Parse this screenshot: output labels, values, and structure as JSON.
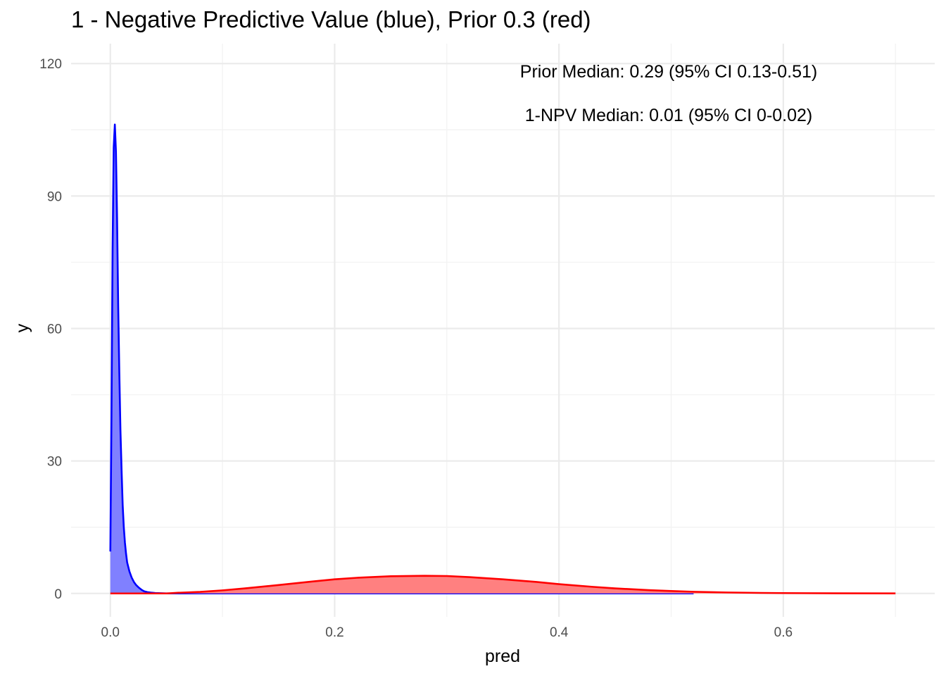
{
  "chart_data": {
    "type": "area",
    "title": "1 - Negative Predictive Value (blue), Prior 0.3 (red)",
    "xlabel": "pred",
    "ylabel": "y",
    "xlim": [
      -0.035,
      0.735
    ],
    "ylim": [
      -5.3,
      124.5
    ],
    "x_ticks": [
      0.0,
      0.2,
      0.4,
      0.6
    ],
    "x_tick_labels": [
      "0.0",
      "0.2",
      "0.4",
      "0.6"
    ],
    "x_minor_ticks": [
      0.1,
      0.3,
      0.5,
      0.7
    ],
    "y_ticks": [
      0,
      30,
      60,
      90,
      120
    ],
    "y_tick_labels": [
      "0",
      "30",
      "60",
      "90",
      "120"
    ],
    "y_minor_ticks": [
      15,
      45,
      75,
      105
    ],
    "grid": true,
    "legend": "none",
    "annotations": [
      "Prior Median: 0.29 (95% CI 0.13-0.51)",
      "1-NPV Median: 0.01 (95% CI 0-0.02)"
    ],
    "series": [
      {
        "color": "#0000ff",
        "fill": "#8080ff",
        "x": [
          0.0,
          0.001,
          0.002,
          0.003,
          0.004,
          0.005,
          0.006,
          0.007,
          0.008,
          0.009,
          0.01,
          0.011,
          0.012,
          0.013,
          0.014,
          0.015,
          0.017,
          0.019,
          0.021,
          0.023,
          0.025,
          0.028,
          0.03,
          0.033,
          0.036,
          0.04,
          0.045,
          0.05,
          0.06,
          0.1,
          0.2,
          0.3,
          0.4,
          0.52
        ],
        "y": [
          9.5,
          40,
          78,
          101,
          106.2,
          100,
          85,
          65,
          50,
          37,
          28,
          20,
          15,
          11.5,
          9,
          7,
          5,
          3.6,
          2.6,
          1.9,
          1.4,
          0.8,
          0.5,
          0.3,
          0.2,
          0.1,
          0.05,
          0.02,
          0,
          0,
          0,
          0,
          0,
          0
        ]
      },
      {
        "color": "#ff0000",
        "fill": "#ff8080",
        "x": [
          0.0,
          0.05,
          0.06,
          0.08,
          0.1,
          0.12,
          0.15,
          0.18,
          0.2,
          0.22,
          0.25,
          0.28,
          0.3,
          0.32,
          0.35,
          0.38,
          0.4,
          0.43,
          0.45,
          0.48,
          0.5,
          0.52,
          0.55,
          0.58,
          0.6,
          0.65,
          0.7
        ],
        "y": [
          0,
          0,
          0.15,
          0.35,
          0.7,
          1.15,
          1.9,
          2.7,
          3.2,
          3.55,
          3.9,
          4.0,
          3.95,
          3.7,
          3.2,
          2.6,
          2.1,
          1.5,
          1.15,
          0.75,
          0.55,
          0.38,
          0.22,
          0.12,
          0.08,
          0.03,
          0.01
        ]
      }
    ]
  }
}
